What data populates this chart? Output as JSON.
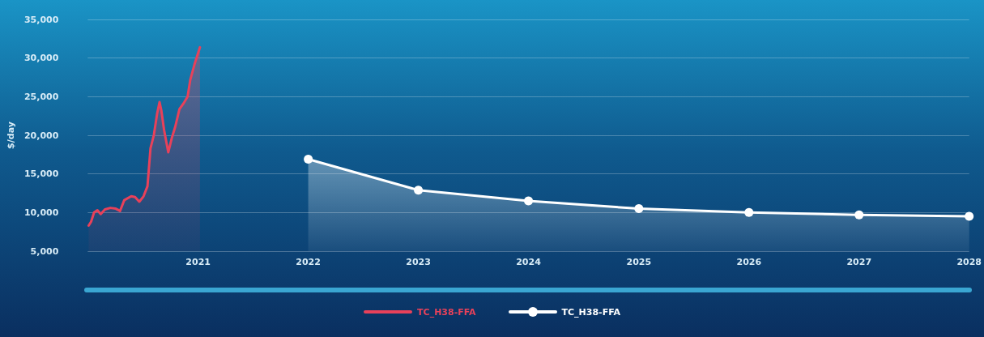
{
  "chart_data": {
    "type": "area",
    "ylabel": "$/day",
    "xlim": [
      "2020",
      "2028"
    ],
    "xticks": [
      "2021",
      "2022",
      "2023",
      "2024",
      "2025",
      "2026",
      "2027",
      "2028"
    ],
    "ylim": [
      5000,
      35000
    ],
    "yticks": [
      {
        "value": 5000,
        "label": "5,000"
      },
      {
        "value": 10000,
        "label": "10,000"
      },
      {
        "value": 15000,
        "label": "15,000"
      },
      {
        "value": 20000,
        "label": "20,000"
      },
      {
        "value": 25000,
        "label": "25,000"
      },
      {
        "value": 30000,
        "label": "30,000"
      },
      {
        "value": 35000,
        "label": "35,000"
      }
    ],
    "grid": "y",
    "legend": "bottom",
    "series": [
      {
        "name": "TC_H38-FFA",
        "color": "#e8415a",
        "marker": "none",
        "x": [
          "2020-01-04",
          "2020-01-12",
          "2020-01-22",
          "2020-02-02",
          "2020-02-13",
          "2020-02-27",
          "2020-03-16",
          "2020-04-03",
          "2020-04-17",
          "2020-05-01",
          "2020-05-24",
          "2020-06-06",
          "2020-06-20",
          "2020-07-04",
          "2020-07-17",
          "2020-07-27",
          "2020-08-07",
          "2020-08-18",
          "2020-08-26",
          "2020-09-01",
          "2020-09-10",
          "2020-09-24",
          "2020-10-06",
          "2020-10-17",
          "2020-10-31",
          "2020-11-13",
          "2020-11-27",
          "2020-12-06",
          "2020-12-20",
          "2021-01-07"
        ],
        "values": [
          8300,
          8800,
          10000,
          10300,
          9800,
          10400,
          10600,
          10500,
          10200,
          11600,
          12100,
          12000,
          11400,
          12100,
          13400,
          18300,
          20000,
          22800,
          24300,
          23200,
          20700,
          17800,
          19700,
          21100,
          23400,
          24100,
          25000,
          27200,
          29200,
          31400
        ]
      },
      {
        "name": "TC_H38-FFA",
        "color": "#ffffff",
        "marker": "circle",
        "x": [
          "2022",
          "2023",
          "2024",
          "2025",
          "2026",
          "2027",
          "2028"
        ],
        "values": [
          16900,
          12900,
          11500,
          10500,
          10000,
          9700,
          9500
        ]
      }
    ]
  }
}
